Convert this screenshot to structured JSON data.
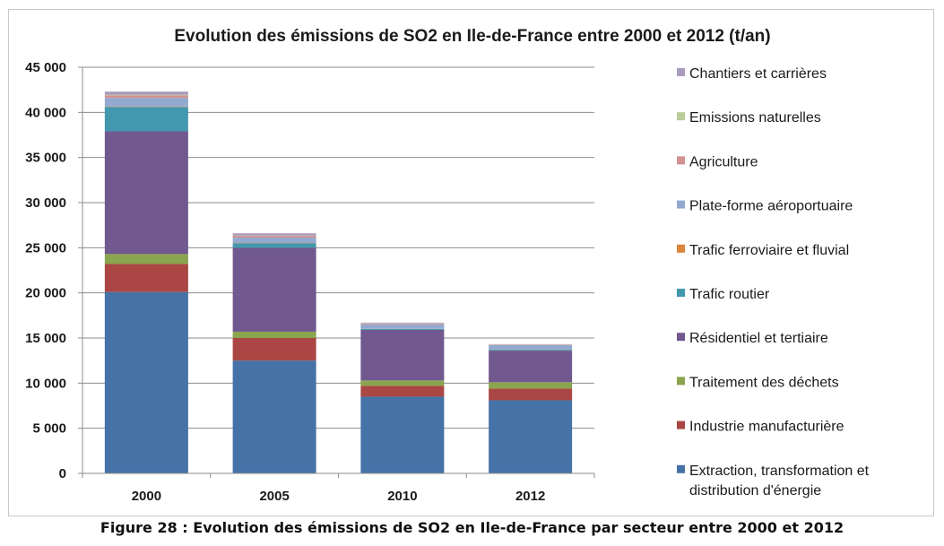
{
  "chart_data": {
    "type": "bar",
    "stacked": true,
    "title": "Evolution des émissions de SO2 en Ile-de-France entre 2000 et 2012  (t/an)",
    "categories": [
      "2000",
      "2005",
      "2010",
      "2012"
    ],
    "ylim": [
      0,
      45000
    ],
    "ytick_labels": [
      "0",
      "5 000",
      "10 000",
      "15 000",
      "20 000",
      "25 000",
      "30 000",
      "35 000",
      "40 000",
      "45 000"
    ],
    "ytick_values": [
      0,
      5000,
      10000,
      15000,
      20000,
      25000,
      30000,
      35000,
      40000,
      45000
    ],
    "grid": true,
    "legend_position": "right",
    "series": [
      {
        "name": "Extraction, transformation et distribution d'énergie",
        "color": "#4572a7",
        "values": [
          20100,
          12500,
          8500,
          8100
        ]
      },
      {
        "name": "Industrie manufacturière",
        "color": "#aa4643",
        "values": [
          3100,
          2500,
          1200,
          1300
        ]
      },
      {
        "name": "Traitement des déchets",
        "color": "#89a54e",
        "values": [
          1100,
          700,
          600,
          700
        ]
      },
      {
        "name": "Résidentiel et tertiaire",
        "color": "#71588f",
        "values": [
          13600,
          9300,
          5600,
          3500
        ]
      },
      {
        "name": "Trafic routier",
        "color": "#4198af",
        "values": [
          2700,
          500,
          100,
          100
        ]
      },
      {
        "name": "Trafic ferroviaire et fluvial",
        "color": "#db843d",
        "values": [
          50,
          30,
          20,
          20
        ]
      },
      {
        "name": "Plate-forme aéroportuaire",
        "color": "#93a9cf",
        "values": [
          950,
          600,
          500,
          500
        ]
      },
      {
        "name": "Agriculture",
        "color": "#d19392",
        "values": [
          300,
          200,
          100,
          50
        ]
      },
      {
        "name": "Emissions naturelles",
        "color": "#b9cd96",
        "values": [
          50,
          30,
          20,
          20
        ]
      },
      {
        "name": "Chantiers et carrières",
        "color": "#a99bbd",
        "values": [
          350,
          240,
          60,
          30
        ]
      }
    ],
    "legend_lines": {
      "0": [
        "Extraction, transformation et",
        "distribution d'énergie"
      ]
    }
  },
  "caption": "Figure 28 : Evolution des émissions de SO2 en Ile-de-France par secteur entre 2000 et 2012"
}
